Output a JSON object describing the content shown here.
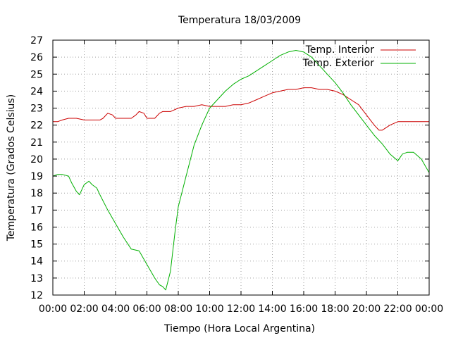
{
  "chart_data": {
    "type": "line",
    "title": "Temperatura 18/03/2009",
    "xlabel": "Tiempo (Hora Local Argentina)",
    "ylabel": "Temperatura (Grados Celsius)",
    "xlim": [
      0,
      24
    ],
    "ylim": [
      12,
      27
    ],
    "grid": true,
    "legend_position": "top-right",
    "x_tick_labels": [
      "00:00",
      "02:00",
      "04:00",
      "06:00",
      "08:00",
      "10:00",
      "12:00",
      "14:00",
      "16:00",
      "18:00",
      "20:00",
      "22:00",
      "00:00"
    ],
    "y_tick_labels": [
      "12",
      "13",
      "14",
      "15",
      "16",
      "17",
      "18",
      "19",
      "20",
      "21",
      "22",
      "23",
      "24",
      "25",
      "26",
      "27"
    ],
    "series": [
      {
        "name": "Temp. Interior",
        "color": "#cc0000",
        "x": [
          0,
          0.3,
          0.6,
          1.0,
          1.5,
          2.0,
          2.5,
          3.0,
          3.2,
          3.5,
          3.8,
          4.0,
          4.5,
          5.0,
          5.3,
          5.5,
          5.8,
          6.0,
          6.5,
          6.8,
          7.0,
          7.5,
          8.0,
          8.5,
          9.0,
          9.5,
          10.0,
          10.5,
          11.0,
          11.5,
          12.0,
          12.5,
          13.0,
          13.5,
          14.0,
          14.5,
          15.0,
          15.5,
          16.0,
          16.5,
          17.0,
          17.5,
          18.0,
          18.5,
          19.0,
          19.5,
          20.0,
          20.5,
          20.8,
          21.0,
          21.5,
          22.0,
          22.5,
          23.0,
          23.5,
          24.0
        ],
        "y": [
          22.2,
          22.2,
          22.3,
          22.4,
          22.4,
          22.3,
          22.3,
          22.3,
          22.4,
          22.7,
          22.6,
          22.4,
          22.4,
          22.4,
          22.6,
          22.8,
          22.7,
          22.4,
          22.4,
          22.7,
          22.8,
          22.8,
          23.0,
          23.1,
          23.1,
          23.2,
          23.1,
          23.1,
          23.1,
          23.2,
          23.2,
          23.3,
          23.5,
          23.7,
          23.9,
          24.0,
          24.1,
          24.1,
          24.2,
          24.2,
          24.1,
          24.1,
          24.0,
          23.8,
          23.5,
          23.2,
          22.6,
          22.0,
          21.7,
          21.7,
          22.0,
          22.2,
          22.2,
          22.2,
          22.2,
          22.2
        ]
      },
      {
        "name": "Temp. Exterior",
        "color": "#00b000",
        "x": [
          0,
          0.3,
          0.6,
          1.0,
          1.2,
          1.5,
          1.7,
          2.0,
          2.3,
          2.5,
          2.8,
          3.0,
          3.5,
          4.0,
          4.5,
          5.0,
          5.5,
          6.0,
          6.5,
          6.8,
          7.0,
          7.2,
          7.5,
          7.8,
          8.0,
          8.5,
          9.0,
          9.5,
          10.0,
          10.5,
          11.0,
          11.5,
          12.0,
          12.5,
          13.0,
          13.5,
          14.0,
          14.5,
          15.0,
          15.5,
          16.0,
          16.5,
          17.0,
          17.5,
          18.0,
          18.5,
          19.0,
          19.5,
          20.0,
          20.5,
          21.0,
          21.5,
          22.0,
          22.3,
          22.6,
          23.0,
          23.5,
          24.0
        ],
        "y": [
          19.0,
          19.1,
          19.1,
          19.0,
          18.6,
          18.1,
          17.9,
          18.5,
          18.7,
          18.5,
          18.3,
          17.9,
          17.0,
          16.2,
          15.4,
          14.7,
          14.6,
          13.8,
          13.0,
          12.6,
          12.5,
          12.3,
          13.4,
          15.8,
          17.2,
          19.0,
          20.8,
          22.0,
          23.0,
          23.5,
          24.0,
          24.4,
          24.7,
          24.9,
          25.2,
          25.5,
          25.8,
          26.1,
          26.3,
          26.4,
          26.3,
          26.0,
          25.5,
          25.0,
          24.5,
          23.9,
          23.2,
          22.6,
          22.0,
          21.4,
          20.9,
          20.3,
          19.9,
          20.3,
          20.4,
          20.4,
          20.0,
          19.2
        ]
      }
    ]
  }
}
